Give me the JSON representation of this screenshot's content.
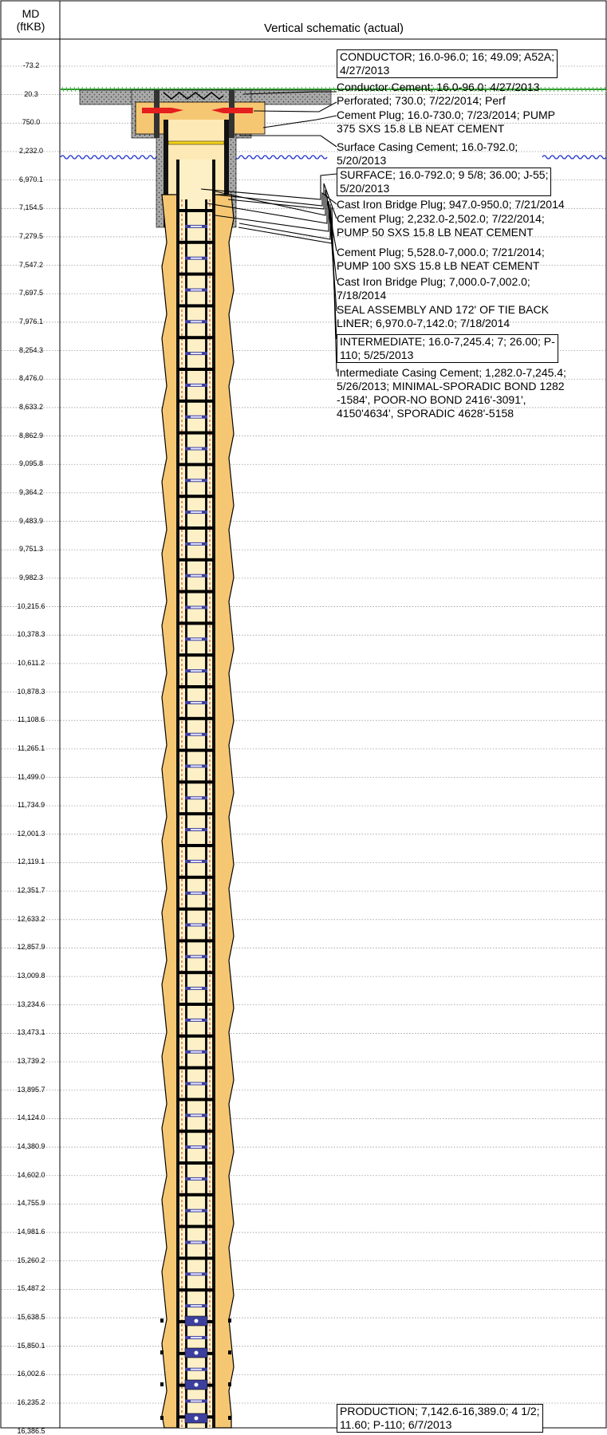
{
  "header": {
    "md_label_line1": "MD",
    "md_label_line2": "(ftKB)",
    "title": "Vertical schematic (actual)"
  },
  "depths": [
    "-73.2",
    "20.3",
    "750.0",
    "2,232.0",
    "6,970.1",
    "7,154.5",
    "7,279.5",
    "7,547.2",
    "7,697.5",
    "7,976.1",
    "8,254.3",
    "8,476.0",
    "8,633.2",
    "8,862.9",
    "9,095.8",
    "9,364.2",
    "9,483.9",
    "9,751.3",
    "9,982.3",
    "10,215.6",
    "10,378.3",
    "10,611.2",
    "10,878.3",
    "11,108.6",
    "11,265.1",
    "11,499.0",
    "11,734.9",
    "12,001.3",
    "12,119.1",
    "12,351.7",
    "12,633.2",
    "12,857.9",
    "13,009.8",
    "13,234.6",
    "13,473.1",
    "13,739.2",
    "13,895.7",
    "14,124.0",
    "14,380.9",
    "14,602.0",
    "14,755.9",
    "14,981.6",
    "15,260.2",
    "15,487.2",
    "15,638.5",
    "15,850.1",
    "16,002.6",
    "16,235.2",
    "16,386.5"
  ],
  "annotations": [
    {
      "boxed": true,
      "lines": [
        "CONDUCTOR; 16.0-96.0; 16; 49.09; A52A;",
        "4/27/2013"
      ]
    },
    {
      "boxed": false,
      "lines": [
        "Conductor Cement; 16.0-96.0; 4/27/2013"
      ]
    },
    {
      "boxed": false,
      "lines": [
        "Perforated; 730.0; 7/22/2014; Perf"
      ]
    },
    {
      "boxed": false,
      "lines": [
        "Cement Plug; 16.0-730.0; 7/23/2014; PUMP",
        "375 SXS 15.8 LB NEAT CEMENT"
      ]
    },
    {
      "boxed": false,
      "lines": [
        "Surface Casing Cement; 16.0-792.0;",
        "5/20/2013"
      ]
    },
    {
      "boxed": true,
      "lines": [
        "SURFACE; 16.0-792.0; 9 5/8; 36.00; J-55;",
        "5/20/2013"
      ]
    },
    {
      "boxed": false,
      "lines": [
        "Cast Iron Bridge Plug; 947.0-950.0; 7/21/2014"
      ]
    },
    {
      "boxed": false,
      "lines": [
        "Cement Plug; 2,232.0-2,502.0; 7/22/2014;",
        "PUMP 50 SXS 15.8 LB NEAT CEMENT"
      ]
    },
    {
      "boxed": false,
      "lines": [
        "Cement Plug; 5,528.0-7,000.0; 7/21/2014;",
        "PUMP 100 SXS 15.8 LB NEAT CEMENT"
      ]
    },
    {
      "boxed": false,
      "lines": [
        "Cast Iron Bridge Plug; 7,000.0-7,002.0;",
        "7/18/2014"
      ]
    },
    {
      "boxed": false,
      "lines": [
        "SEAL ASSEMBLY AND 172' OF TIE BACK",
        "LINER; 6,970.0-7,142.0; 7/18/2014"
      ]
    },
    {
      "boxed": true,
      "lines": [
        "INTERMEDIATE; 16.0-7,245.4; 7; 26.00; P-",
        "110; 5/25/2013"
      ]
    },
    {
      "boxed": false,
      "lines": [
        "Intermediate Casing Cement; 1,282.0-7,245.4;",
        "5/26/2013; MINIMAL-SPORADIC BOND 1282",
        "-1584', POOR-NO BOND 2416'-3091',",
        "4150'4634', SPORADIC 4628'-5158"
      ]
    },
    {
      "boxed": true,
      "lines": [
        "PRODUCTION; 7,142.6-16,389.0; 4 1/2;",
        "11.60; P-110; 6/7/2013"
      ]
    }
  ]
}
